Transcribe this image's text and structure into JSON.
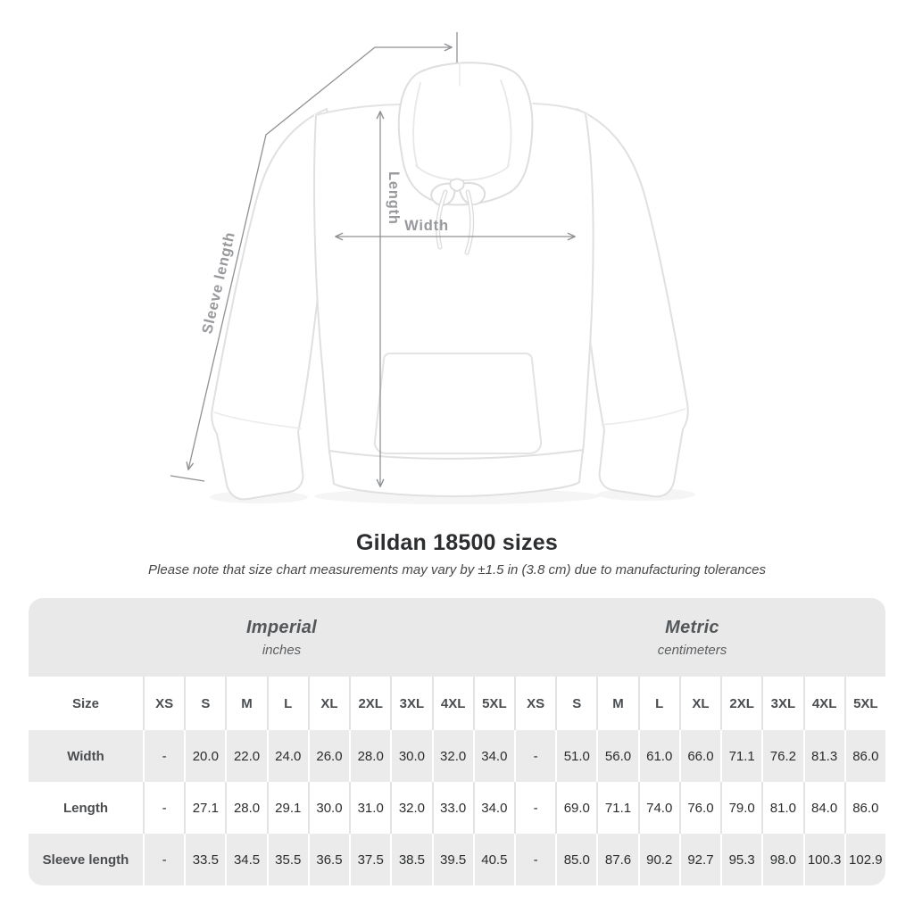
{
  "title": "Gildan 18500 sizes",
  "note": "Please note that size chart measurements may vary by ±1.5 in (3.8 cm) due to manufacturing tolerances",
  "diagram_labels": {
    "length": "Length",
    "width": "Width",
    "sleeve_length": "Sleeve length"
  },
  "chart_data": {
    "type": "table",
    "title": "Gildan 18500 sizes",
    "groups": [
      {
        "name": "Imperial",
        "unit": "inches"
      },
      {
        "name": "Metric",
        "unit": "centimeters"
      }
    ],
    "size_header": "Size",
    "sizes": [
      "XS",
      "S",
      "M",
      "L",
      "XL",
      "2XL",
      "3XL",
      "4XL",
      "5XL"
    ],
    "rows": [
      {
        "label": "Width",
        "imperial": [
          "-",
          "20.0",
          "22.0",
          "24.0",
          "26.0",
          "28.0",
          "30.0",
          "32.0",
          "34.0"
        ],
        "metric": [
          "-",
          "51.0",
          "56.0",
          "61.0",
          "66.0",
          "71.1",
          "76.2",
          "81.3",
          "86.0"
        ]
      },
      {
        "label": "Length",
        "imperial": [
          "-",
          "27.1",
          "28.0",
          "29.1",
          "30.0",
          "31.0",
          "32.0",
          "33.0",
          "34.0"
        ],
        "metric": [
          "-",
          "69.0",
          "71.1",
          "74.0",
          "76.0",
          "79.0",
          "81.0",
          "84.0",
          "86.0"
        ]
      },
      {
        "label": "Sleeve length",
        "imperial": [
          "-",
          "33.5",
          "34.5",
          "35.5",
          "36.5",
          "37.5",
          "38.5",
          "39.5",
          "40.5"
        ],
        "metric": [
          "-",
          "85.0",
          "87.6",
          "90.2",
          "92.7",
          "95.3",
          "98.0",
          "100.3",
          "102.9"
        ]
      }
    ]
  },
  "colors": {
    "annotation_line": "#8e9194",
    "annotation_label": "#97999c",
    "band_bg": "#e9e9e9",
    "alt_row_bg": "#ebebeb",
    "garment_outline": "#e0e0e0"
  }
}
